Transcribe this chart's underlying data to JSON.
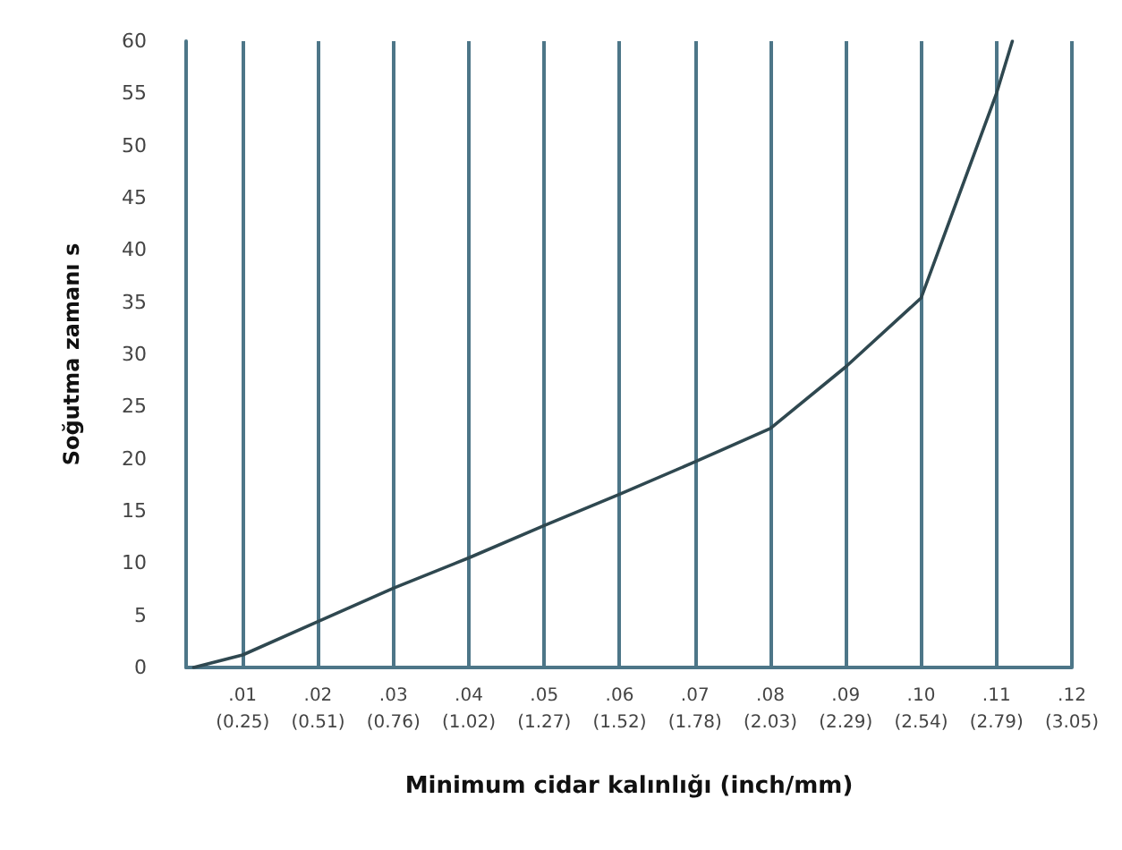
{
  "chart_data": {
    "type": "line",
    "xlabel": "Minimum cidar kalınlığı (inch/mm)",
    "ylabel": "Soğutma zamanı s",
    "x": [
      0.0035,
      0.01,
      0.02,
      0.03,
      0.04,
      0.05,
      0.06,
      0.07,
      0.08,
      0.09,
      0.1,
      0.11,
      0.1121
    ],
    "series": [
      {
        "color": "#2f4850",
        "values": [
          0,
          1.2,
          4.4,
          7.6,
          10.5,
          13.6,
          16.6,
          19.7,
          22.9,
          28.8,
          35.4,
          55,
          60
        ]
      }
    ],
    "xlim": [
      0.0025,
      0.12
    ],
    "xticks": [
      {
        "value": 0.01,
        "label": ".01"
      },
      {
        "value": 0.02,
        "label": ".02"
      },
      {
        "value": 0.03,
        "label": ".03"
      },
      {
        "value": 0.04,
        "label": ".04"
      },
      {
        "value": 0.05,
        "label": ".05"
      },
      {
        "value": 0.06,
        "label": ".06"
      },
      {
        "value": 0.07,
        "label": ".07"
      },
      {
        "value": 0.08,
        "label": ".08"
      },
      {
        "value": 0.09,
        "label": ".09"
      },
      {
        "value": 0.1,
        "label": ".10"
      },
      {
        "value": 0.11,
        "label": ".11"
      },
      {
        "value": 0.12,
        "label": ".12"
      }
    ],
    "x2lim": [
      0.0635,
      3.048
    ],
    "x2ticks": [
      {
        "value": 0.254,
        "label": "(0.25)"
      },
      {
        "value": 0.508,
        "label": "(0.51)"
      },
      {
        "value": 0.762,
        "label": "(0.76)"
      },
      {
        "value": 1.016,
        "label": "(1.02)"
      },
      {
        "value": 1.27,
        "label": "(1.27)"
      },
      {
        "value": 1.524,
        "label": "(1.52)"
      },
      {
        "value": 1.778,
        "label": "(1.78)"
      },
      {
        "value": 2.032,
        "label": "(2.03)"
      },
      {
        "value": 2.286,
        "label": "(2.29)"
      },
      {
        "value": 2.54,
        "label": "(2.54)"
      },
      {
        "value": 2.794,
        "label": "(2.79)"
      },
      {
        "value": 3.048,
        "label": "(3.05)"
      }
    ],
    "ylim": [
      0,
      60
    ],
    "yticks": [
      0,
      5,
      10,
      15,
      20,
      25,
      30,
      35,
      40,
      45,
      50,
      55,
      60
    ],
    "grid": "x",
    "marker": "none",
    "line_style": "solid"
  }
}
